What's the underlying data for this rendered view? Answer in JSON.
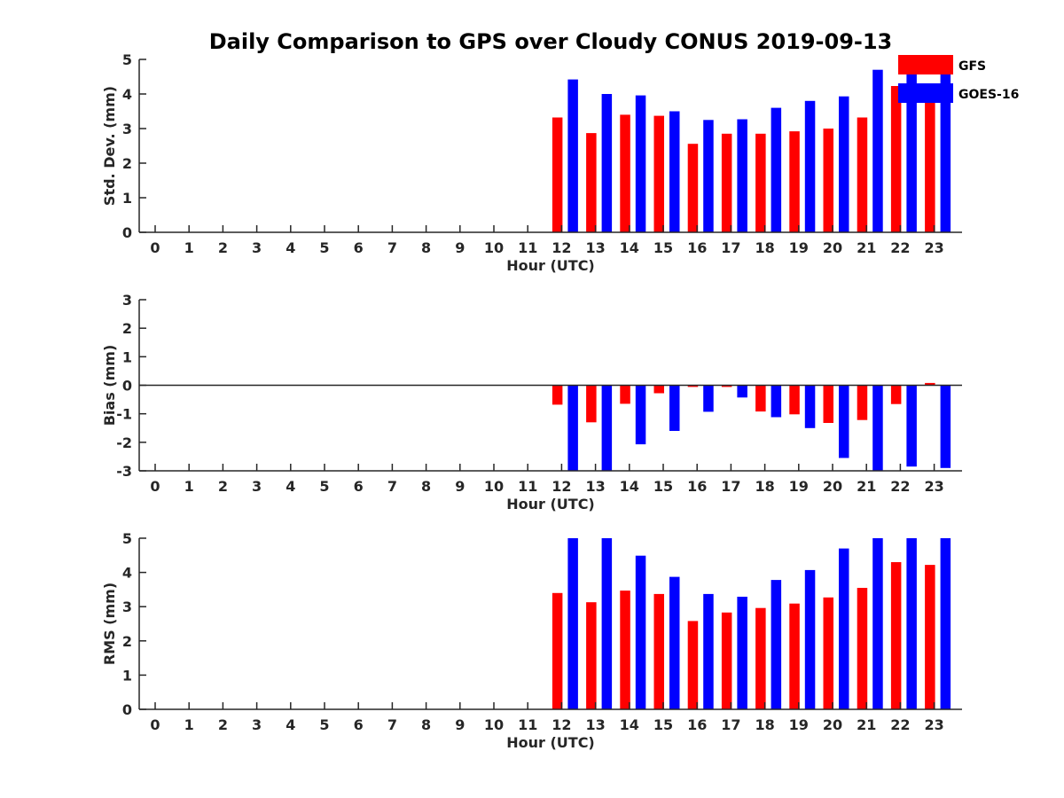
{
  "title": "Daily Comparison to GPS over Cloudy CONUS 2019-09-13",
  "legend": [
    "GFS",
    "GOES-16"
  ],
  "colors": {
    "GFS": "#ff0000",
    "GOES-16": "#0000ff",
    "axis": "#262626"
  },
  "chart_data": [
    {
      "type": "bar",
      "categories": [
        "0",
        "1",
        "2",
        "3",
        "4",
        "5",
        "6",
        "7",
        "8",
        "9",
        "10",
        "11",
        "12",
        "13",
        "14",
        "15",
        "16",
        "17",
        "18",
        "19",
        "20",
        "21",
        "22",
        "23"
      ],
      "xlabel": "Hour (UTC)",
      "ylabel": "Std. Dev. (mm)",
      "ylim": [
        0,
        5
      ],
      "yticks": [
        "0",
        "1",
        "2",
        "3",
        "4",
        "5"
      ],
      "series": [
        {
          "name": "GFS",
          "values": [
            null,
            null,
            null,
            null,
            null,
            null,
            null,
            null,
            null,
            null,
            null,
            null,
            3.32,
            2.87,
            3.4,
            3.37,
            2.56,
            2.85,
            2.85,
            2.92,
            3.0,
            3.32,
            4.23,
            3.85
          ]
        },
        {
          "name": "GOES-16",
          "values": [
            null,
            null,
            null,
            null,
            null,
            null,
            null,
            null,
            null,
            null,
            null,
            null,
            4.42,
            4.0,
            3.96,
            3.5,
            3.25,
            3.27,
            3.6,
            3.8,
            3.93,
            4.7,
            5.0,
            4.6
          ]
        }
      ]
    },
    {
      "type": "bar",
      "categories": [
        "0",
        "1",
        "2",
        "3",
        "4",
        "5",
        "6",
        "7",
        "8",
        "9",
        "10",
        "11",
        "12",
        "13",
        "14",
        "15",
        "16",
        "17",
        "18",
        "19",
        "20",
        "21",
        "22",
        "23"
      ],
      "xlabel": "Hour (UTC)",
      "ylabel": "Bias (mm)",
      "ylim": [
        -3,
        3
      ],
      "yticks": [
        "-3",
        "-2",
        "-1",
        "0",
        "1",
        "2",
        "3"
      ],
      "zero_line": true,
      "series": [
        {
          "name": "GFS",
          "values": [
            null,
            null,
            null,
            null,
            null,
            null,
            null,
            null,
            null,
            null,
            null,
            null,
            -0.68,
            -1.3,
            -0.65,
            -0.28,
            -0.06,
            -0.06,
            -0.92,
            -1.02,
            -1.32,
            -1.22,
            -0.66,
            0.08
          ]
        },
        {
          "name": "GOES-16",
          "values": [
            null,
            null,
            null,
            null,
            null,
            null,
            null,
            null,
            null,
            null,
            null,
            null,
            -3.0,
            -3.0,
            -2.07,
            -1.6,
            -0.93,
            -0.43,
            -1.12,
            -1.5,
            -2.55,
            -3.0,
            -2.85,
            -2.9
          ]
        }
      ]
    },
    {
      "type": "bar",
      "categories": [
        "0",
        "1",
        "2",
        "3",
        "4",
        "5",
        "6",
        "7",
        "8",
        "9",
        "10",
        "11",
        "12",
        "13",
        "14",
        "15",
        "16",
        "17",
        "18",
        "19",
        "20",
        "21",
        "22",
        "23"
      ],
      "xlabel": "Hour (UTC)",
      "ylabel": "RMS (mm)",
      "ylim": [
        0,
        5
      ],
      "yticks": [
        "0",
        "1",
        "2",
        "3",
        "4",
        "5"
      ],
      "series": [
        {
          "name": "GFS",
          "values": [
            null,
            null,
            null,
            null,
            null,
            null,
            null,
            null,
            null,
            null,
            null,
            null,
            3.4,
            3.13,
            3.47,
            3.37,
            2.58,
            2.83,
            2.96,
            3.09,
            3.27,
            3.55,
            4.3,
            4.22
          ]
        },
        {
          "name": "GOES-16",
          "values": [
            null,
            null,
            null,
            null,
            null,
            null,
            null,
            null,
            null,
            null,
            null,
            null,
            5.0,
            5.0,
            4.49,
            3.87,
            3.37,
            3.29,
            3.78,
            4.07,
            4.7,
            5.0,
            5.0,
            5.0
          ]
        }
      ]
    }
  ]
}
